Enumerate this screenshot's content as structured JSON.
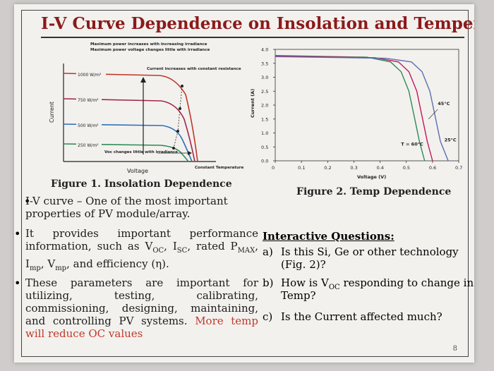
{
  "slide": {
    "title": "I-V Curve Dependence on Insolation and Temperature",
    "page_number": "8"
  },
  "figure1": {
    "annotation_top_1": "Maximum power increases with increasing irradiance",
    "annotation_top_2": "Maximum power voltage changes little with irradiance",
    "annotation_current": "Current increases with constant resistance",
    "annotation_voc": "Voc changes little with irradiance",
    "annotation_temp": "Constant Temperature",
    "irradiance_labels": [
      "1000 W/m²",
      "750 W/m²",
      "500 W/m²",
      "250 W/m²"
    ],
    "ylabel": "Current",
    "xlabel": "Voltage",
    "caption": "Figure 1. Insolation Dependence"
  },
  "chart_data": {
    "type": "line",
    "xlabel": "Voltage (V)",
    "ylabel": "Current (A)",
    "xlim": [
      0,
      0.7
    ],
    "ylim": [
      0,
      4.0
    ],
    "x_ticks": [
      "0",
      "0.1",
      "0.2",
      "0.3",
      "0.4",
      "0.5",
      "0.6",
      "0.7"
    ],
    "y_ticks": [
      "0.0",
      "0.5",
      "1.0",
      "1.5",
      "2.0",
      "2.5",
      "3.0",
      "3.5",
      "4.0"
    ],
    "series": [
      {
        "name": "T = 60°C",
        "color": "#2e8b57",
        "x": [
          0,
          0.35,
          0.44,
          0.48,
          0.51,
          0.53,
          0.55,
          0.57
        ],
        "y": [
          3.78,
          3.72,
          3.55,
          3.2,
          2.5,
          1.6,
          0.7,
          0
        ]
      },
      {
        "name": "45°C",
        "color": "#c2185b",
        "x": [
          0,
          0.38,
          0.47,
          0.51,
          0.54,
          0.56,
          0.58,
          0.6
        ],
        "y": [
          3.76,
          3.7,
          3.55,
          3.2,
          2.5,
          1.6,
          0.7,
          0
        ]
      },
      {
        "name": "25°C",
        "color": "#5b6fb0",
        "x": [
          0,
          0.42,
          0.52,
          0.56,
          0.59,
          0.61,
          0.63,
          0.66
        ],
        "y": [
          3.74,
          3.68,
          3.55,
          3.2,
          2.5,
          1.6,
          0.7,
          0
        ]
      }
    ],
    "annotations": [
      "T = 60°C",
      "45°C",
      "25°C"
    ],
    "caption": "Figure 2. Temp Dependence"
  },
  "bullets": {
    "b1": "I-V curve  – One of the most important properties of PV module/array.",
    "b2_parts": [
      "It  provides  important  performance information, such as V",
      "OC",
      ", I",
      "SC",
      ", rated P",
      "MAX",
      ", I",
      "mp",
      ", V",
      "mp",
      ", and efficiency (η)."
    ],
    "b3_black": "These  parameters  are  important  for utilizing,  testing,  calibrating, commissioning, designing, maintaining, and controlling PV systems.",
    "b3_red": "More temp will reduce OC values"
  },
  "questions": {
    "title": "Interactive Questions:",
    "items": [
      {
        "label": "a)",
        "line1": "Is this Si, Ge or other technology",
        "line2": "(Fig. 2)?"
      },
      {
        "label": "b)",
        "line1_a": "How is V",
        "line1_sub": "OC",
        "line1_b": " responding to change in",
        "line2": "Temp?"
      },
      {
        "label": "c)",
        "line1": "Is the Current affected much?"
      }
    ]
  }
}
